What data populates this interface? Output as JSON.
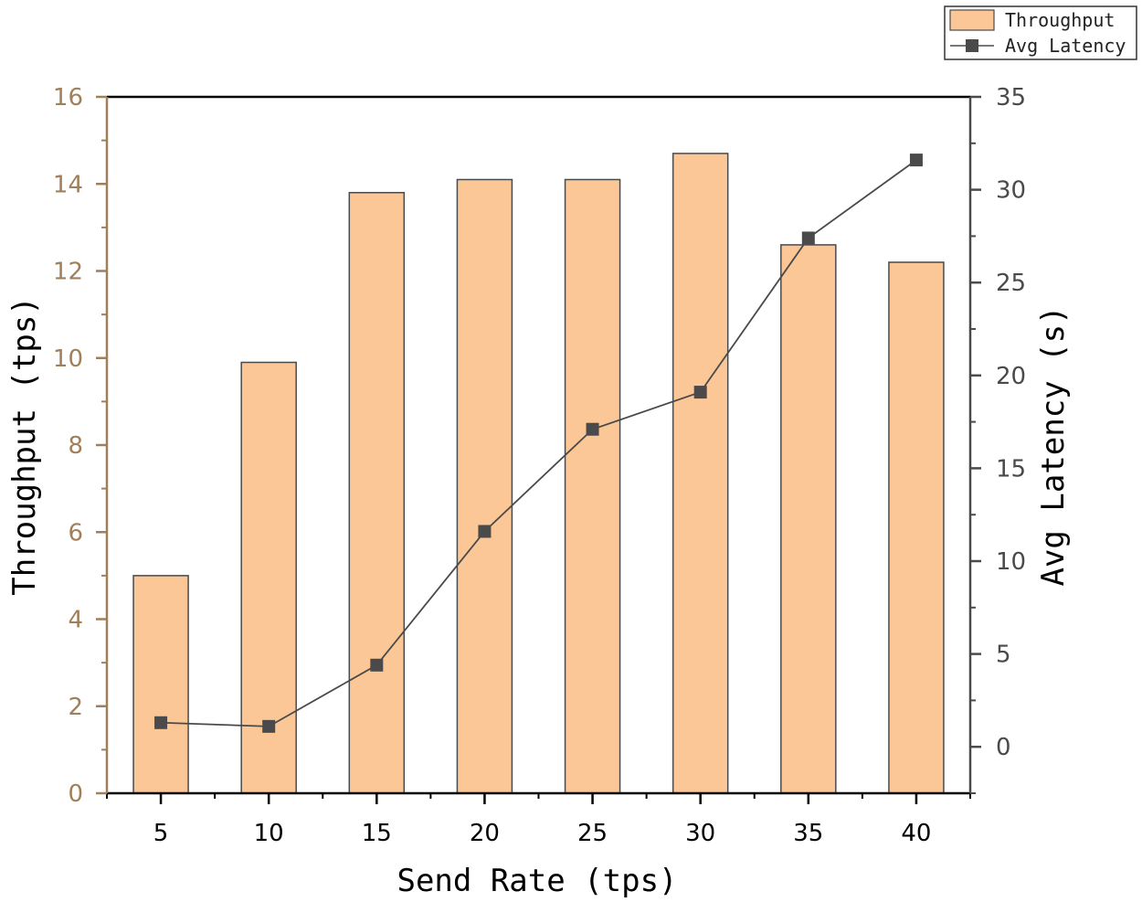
{
  "chart_data": {
    "type": "bar",
    "title": "",
    "xlabel": "Send Rate (tps)",
    "categories": [
      "5",
      "10",
      "15",
      "20",
      "25",
      "30",
      "35",
      "40"
    ],
    "series": [
      {
        "name": "Throughput",
        "type": "bar",
        "axis": "left",
        "values": [
          5.0,
          9.9,
          13.8,
          14.1,
          14.1,
          14.7,
          12.6,
          12.2
        ]
      },
      {
        "name": "Avg Latency",
        "type": "line",
        "marker": "square",
        "axis": "right",
        "values": [
          1.3,
          1.1,
          4.4,
          11.6,
          17.1,
          19.1,
          27.4,
          31.6
        ]
      }
    ],
    "left_axis": {
      "label": "Throughput (tps)",
      "ylim": [
        0,
        16
      ],
      "ticks": [
        "0",
        "2",
        "4",
        "6",
        "8",
        "10",
        "12",
        "14",
        "16"
      ]
    },
    "right_axis": {
      "label": "Avg Latency (s)",
      "ylim": [
        -2.5,
        35
      ],
      "ticks": [
        "0",
        "5",
        "10",
        "15",
        "20",
        "25",
        "30",
        "35"
      ]
    },
    "legend_position": "top-right",
    "grid": false
  },
  "colors": {
    "bar_fill": "#fcc797",
    "bar_stroke": "#4a4a4a",
    "line": "#4a4a4a",
    "marker": "#4a4a4a",
    "left_axis": "#a07f5a",
    "right_axis": "#4a4a4a",
    "axis_frame": "#000000"
  }
}
